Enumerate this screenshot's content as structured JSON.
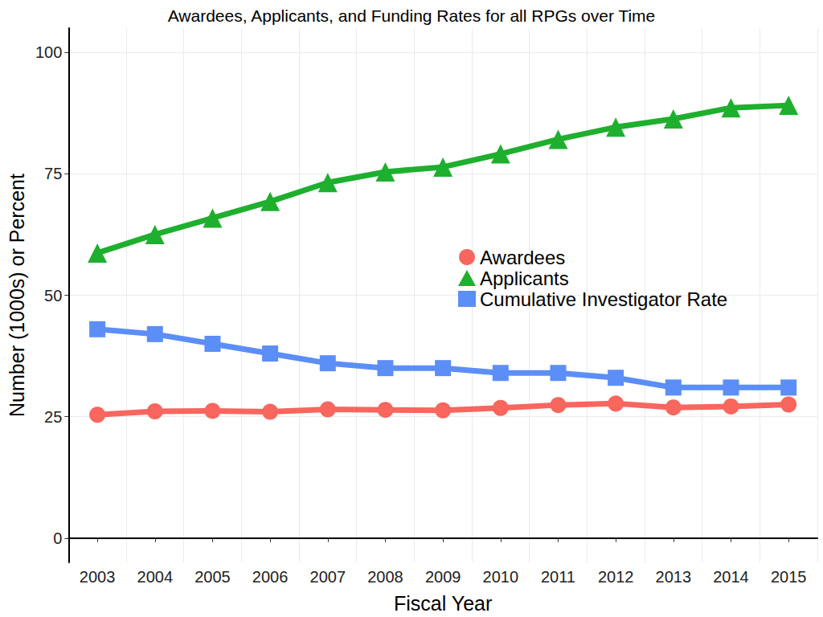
{
  "chart_data": {
    "type": "line",
    "title": "Awardees, Applicants, and Funding Rates for all RPGs over Time",
    "x_label": "Fiscal Year",
    "y_label": "Number (1000s) or Percent",
    "categories": [
      "2003",
      "2004",
      "2005",
      "2006",
      "2007",
      "2008",
      "2009",
      "2010",
      "2011",
      "2012",
      "2013",
      "2014",
      "2015"
    ],
    "series": [
      {
        "name": "Awardees",
        "color": "#F8665E",
        "marker": "circle",
        "values": [
          25.4,
          26.1,
          26.2,
          26.0,
          26.5,
          26.4,
          26.3,
          26.8,
          27.4,
          27.7,
          26.9,
          27.1,
          27.5
        ]
      },
      {
        "name": "Applicants",
        "color": "#1FAF2E",
        "marker": "triangle",
        "values": [
          58.7,
          62.5,
          65.9,
          69.3,
          73.2,
          75.4,
          76.4,
          79.1,
          82.1,
          84.6,
          86.3,
          88.6,
          89.1
        ]
      },
      {
        "name": "Cumulative Investigator Rate",
        "color": "#5B8EF7",
        "marker": "square",
        "values": [
          43,
          42,
          40,
          38,
          36,
          35,
          35,
          34,
          34,
          33,
          31,
          31,
          31
        ]
      }
    ],
    "ylim": [
      -5,
      105
    ],
    "yticks": [
      0,
      25,
      50,
      75,
      100
    ],
    "grid": true,
    "legend": "center"
  }
}
